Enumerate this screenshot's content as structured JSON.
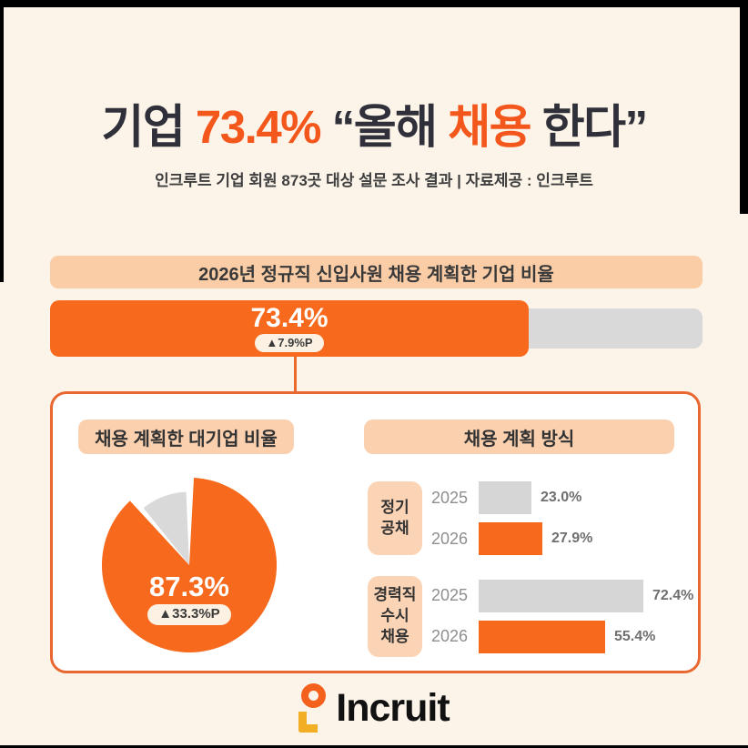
{
  "colors": {
    "background": "#FCF4E9",
    "accent_orange": "#F76A1E",
    "title_orange": "#F3571C",
    "peach": "#FBCDA7",
    "gray_bar": "#D6D6D6",
    "panel_border": "#E96730",
    "dark_text": "#30303A"
  },
  "header": {
    "title_p1": "기업 ",
    "title_p2": "73.4%",
    "title_p3": " “올해 ",
    "title_p4": "채용",
    "title_p5": " 한다”",
    "subtitle": "인크루트 기업 회원 873곳 대상 설문 조사 결과 | 자료제공 : 인크루트"
  },
  "overall": {
    "banner": "2026년 정규직 신입사원 채용 계획한 기업 비율",
    "value_label": "73.4%",
    "change_label": "▲7.9%P"
  },
  "panel": {
    "left": {
      "badge": "채용 계획한 대기업 비율",
      "value_label": "87.3%",
      "change_label": "▲33.3%P"
    },
    "right": {
      "badge": "채용 계획 방식",
      "groups": [
        {
          "label": "정기\n공채",
          "rows": [
            {
              "year": "2025",
              "value_label": "23.0%"
            },
            {
              "year": "2026",
              "value_label": "27.9%"
            }
          ]
        },
        {
          "label": "경력직\n수시\n채용",
          "rows": [
            {
              "year": "2025",
              "value_label": "72.4%"
            },
            {
              "year": "2026",
              "value_label": "55.4%"
            }
          ]
        }
      ]
    }
  },
  "footer": {
    "logo_text": "Incruit"
  },
  "chart_data": [
    {
      "type": "bar",
      "title": "2026년 정규직 신입사원 채용 계획한 기업 비율",
      "categories": [
        "2026년 채용 계획 기업 비율"
      ],
      "values": [
        73.4
      ],
      "unit": "%",
      "annotation": "▲7.9%P",
      "xlim": [
        0,
        100
      ],
      "colors": {
        "fill": "#F76A1E",
        "track": "#D9D9D9"
      }
    },
    {
      "type": "pie",
      "title": "채용 계획한 대기업 비율",
      "slices": [
        {
          "label": "채용 계획",
          "value": 87.3,
          "color": "#F76A1E"
        },
        {
          "label": "remainder",
          "value": 12.7,
          "color": "#D9D9D9"
        }
      ],
      "center_label": "87.3%",
      "annotation": "▲33.3%P"
    },
    {
      "type": "bar",
      "title": "채용 계획 방식",
      "categories": [
        "2025",
        "2026"
      ],
      "groups": [
        {
          "label": "정기 공채",
          "series": [
            {
              "name": "2025",
              "value": 23.0,
              "color": "#D6D6D6"
            },
            {
              "name": "2026",
              "value": 27.9,
              "color": "#F76A1E"
            }
          ]
        },
        {
          "label": "경력직 수시 채용",
          "series": [
            {
              "name": "2025",
              "value": 72.4,
              "color": "#D6D6D6"
            },
            {
              "name": "2026",
              "value": 55.4,
              "color": "#F76A1E"
            }
          ]
        }
      ],
      "unit": "%",
      "xlim": [
        0,
        75
      ]
    }
  ]
}
